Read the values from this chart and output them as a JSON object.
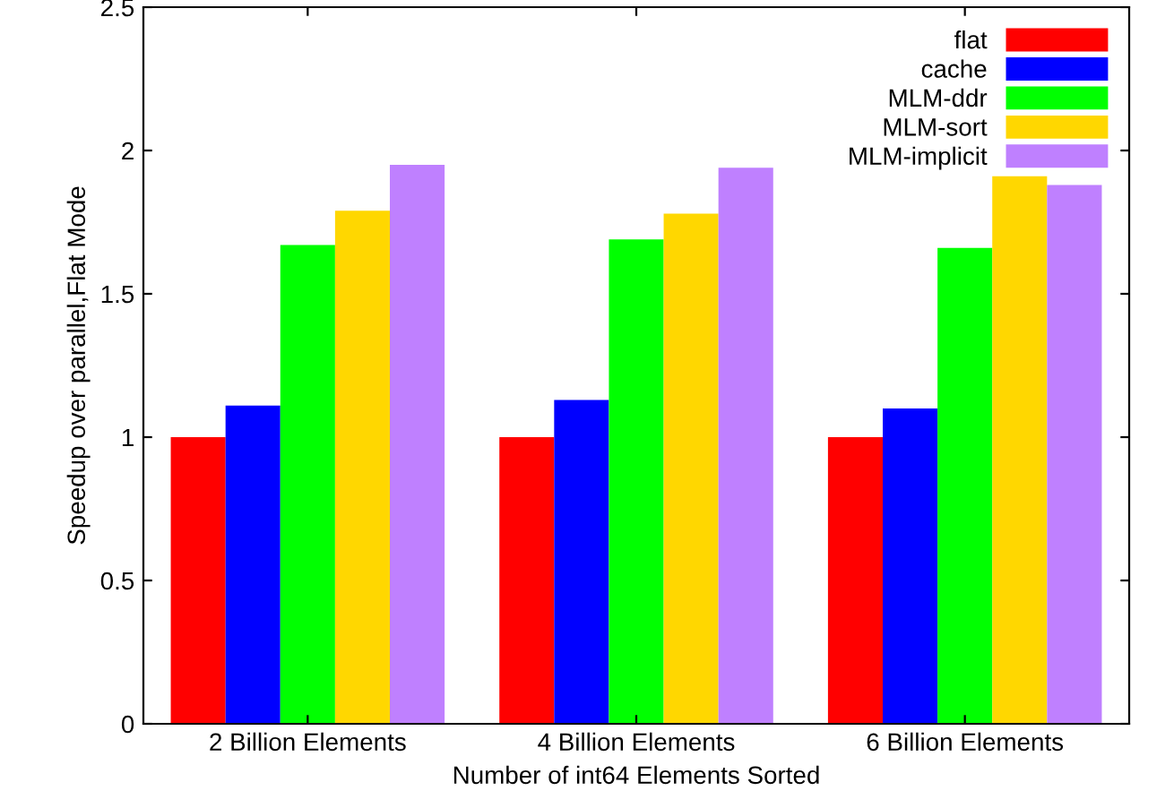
{
  "chart_data": {
    "type": "bar",
    "xlabel": "Number of int64 Elements Sorted",
    "ylabel": "Speedup over parallel,Flat Mode",
    "categories": [
      "2 Billion Elements",
      "4 Billion Elements",
      "6 Billion Elements"
    ],
    "series": [
      {
        "name": "flat",
        "color": "#ff0000",
        "values": [
          1.0,
          1.0,
          1.0
        ]
      },
      {
        "name": "cache",
        "color": "#0000ff",
        "values": [
          1.11,
          1.13,
          1.1
        ]
      },
      {
        "name": "MLM-ddr",
        "color": "#00ff00",
        "values": [
          1.67,
          1.69,
          1.66
        ]
      },
      {
        "name": "MLM-sort",
        "color": "#ffd700",
        "values": [
          1.79,
          1.78,
          1.91
        ]
      },
      {
        "name": "MLM-implicit",
        "color": "#bf80ff",
        "values": [
          1.95,
          1.94,
          1.88
        ]
      }
    ],
    "ylim": [
      0,
      2.5
    ],
    "yticks": [
      0,
      0.5,
      1,
      1.5,
      2,
      2.5
    ],
    "grid": false,
    "legend": "top right"
  }
}
